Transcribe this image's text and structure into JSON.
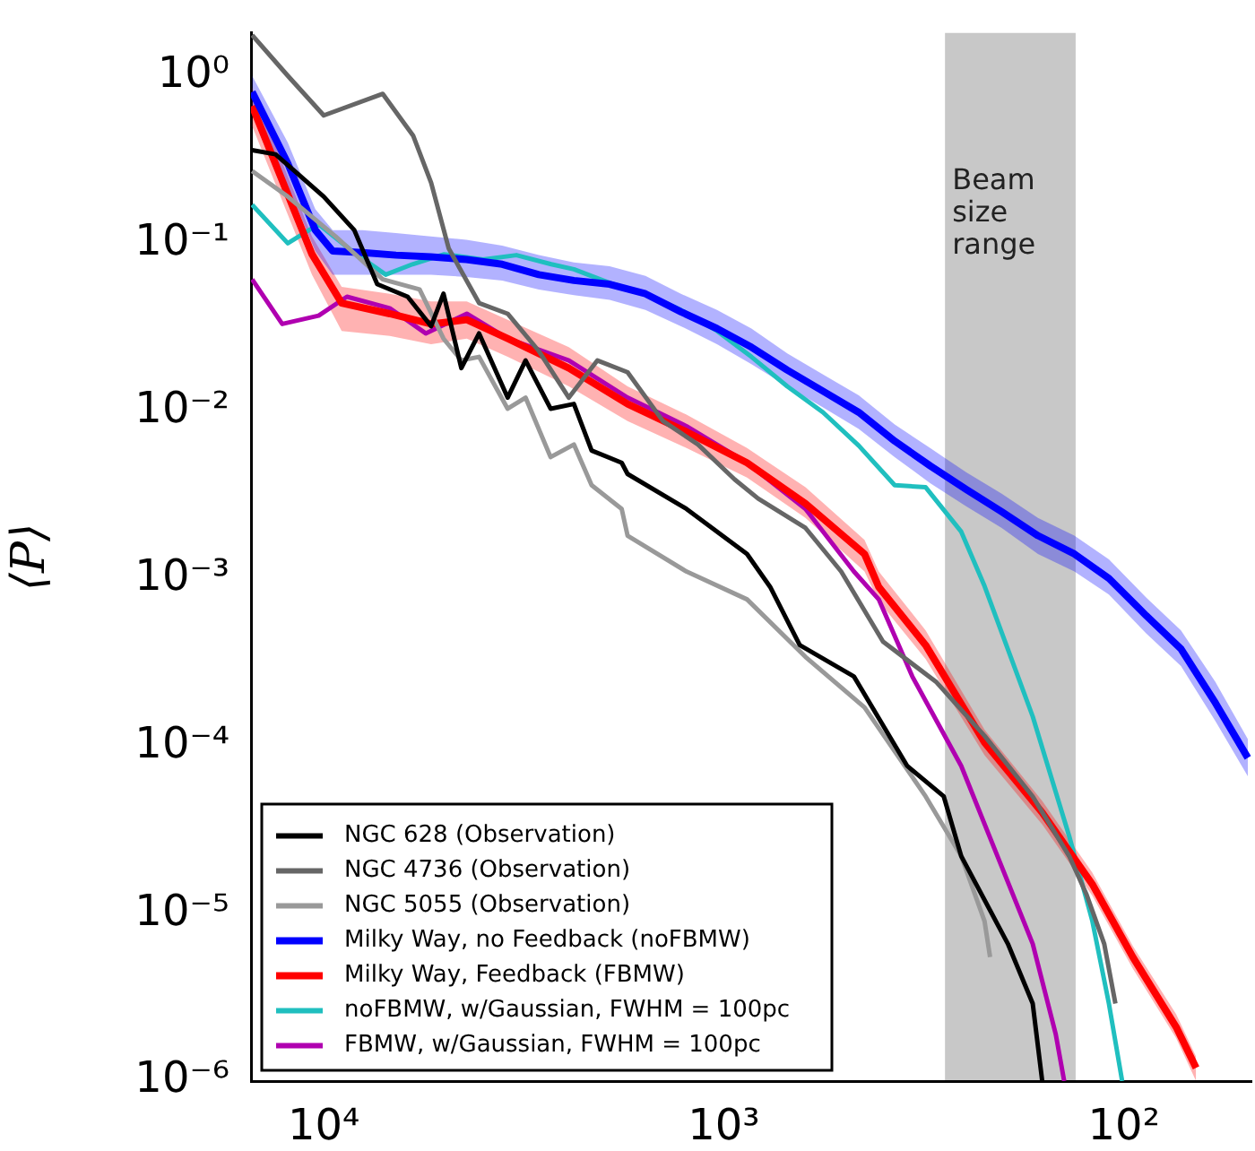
{
  "chart_data": {
    "type": "line",
    "ylabel": "⟨P⟩",
    "log": "xy",
    "xlim": [
      15200,
      48
    ],
    "ylim": [
      1e-06,
      1.8
    ],
    "xticks": [
      {
        "value": 10000,
        "label": "10⁴"
      },
      {
        "value": 1000,
        "label": "10³"
      },
      {
        "value": 100,
        "label": "10²"
      }
    ],
    "yticks": [
      {
        "value": 1e-06,
        "label": "10⁻⁶"
      },
      {
        "value": 1e-05,
        "label": "10⁻⁵"
      },
      {
        "value": 0.0001,
        "label": "10⁻⁴"
      },
      {
        "value": 0.001,
        "label": "10⁻³"
      },
      {
        "value": 0.01,
        "label": "10⁻²"
      },
      {
        "value": 0.1,
        "label": "10⁻¹"
      },
      {
        "value": 1,
        "label": "10⁰"
      }
    ],
    "grid": false,
    "legend": "bottom left",
    "bands": [
      {
        "axis": "x",
        "from": 280,
        "to": 132,
        "label": "Beam size range",
        "color": "#c8c8c8"
      }
    ],
    "series": [
      {
        "name": "NGC 628 (Observation)",
        "color": "#000000",
        "x": [
          15100,
          13200,
          10000,
          8390,
          7350,
          6170,
          5390,
          5020,
          4530,
          4090,
          3470,
          3130,
          2710,
          2370,
          2140,
          1800,
          1740,
          1240,
          875,
          766,
          646,
          473,
          348,
          282,
          255,
          195,
          169,
          160
        ],
        "values": [
          0.36,
          0.34,
          0.19,
          0.12,
          0.057,
          0.048,
          0.032,
          0.05,
          0.018,
          0.029,
          0.012,
          0.02,
          0.0103,
          0.011,
          0.0058,
          0.0049,
          0.0042,
          0.0026,
          0.0014,
          0.00089,
          0.0004,
          0.00026,
          7.6e-05,
          5e-05,
          2.2e-05,
          6.6e-06,
          2.9e-06,
          1e-06
        ]
      },
      {
        "name": "NGC 4736 (Observation)",
        "color": "#666666",
        "x": [
          15100,
          12300,
          10000,
          7120,
          5980,
          5390,
          4870,
          4090,
          3470,
          2910,
          2440,
          2070,
          1740,
          1420,
          1160,
          940,
          821,
          625,
          509,
          400,
          294,
          223,
          169,
          137,
          124,
          112,
          105
        ],
        "values": [
          1.75,
          1.0,
          0.58,
          0.78,
          0.44,
          0.23,
          0.093,
          0.044,
          0.038,
          0.023,
          0.012,
          0.02,
          0.017,
          0.0087,
          0.0063,
          0.0039,
          0.003,
          0.002,
          0.0011,
          0.00042,
          0.00024,
          0.000115,
          5e-05,
          2.2e-05,
          1.3e-05,
          6.6e-06,
          2.9e-06
        ]
      },
      {
        "name": "NGC 5055 (Observation)",
        "color": "#999999",
        "x": [
          15100,
          12300,
          9350,
          7120,
          5760,
          5020,
          4530,
          4090,
          3470,
          3130,
          2710,
          2370,
          2140,
          1800,
          1740,
          1240,
          875,
          625,
          445,
          313,
          255,
          223,
          216
        ],
        "values": [
          0.27,
          0.19,
          0.11,
          0.061,
          0.053,
          0.027,
          0.02,
          0.021,
          0.0103,
          0.012,
          0.0053,
          0.0063,
          0.0036,
          0.0026,
          0.0018,
          0.0011,
          0.00075,
          0.00034,
          0.00017,
          5e-05,
          2.2e-05,
          9e-06,
          5.5e-06
        ]
      },
      {
        "name": "Milky Way, no Feedback (noFBMW)",
        "color": "#0000ff",
        "x": [
          15100,
          12300,
          10500,
          9500,
          8000,
          6600,
          5400,
          4400,
          3580,
          2900,
          2370,
          1930,
          1570,
          1280,
          1040,
          853,
          694,
          565,
          460,
          374,
          305,
          248,
          202,
          164,
          133,
          109,
          88,
          72,
          59,
          49
        ],
        "values": [
          0.8,
          0.3,
          0.12,
          0.09,
          0.088,
          0.085,
          0.083,
          0.08,
          0.075,
          0.065,
          0.06,
          0.057,
          0.05,
          0.039,
          0.031,
          0.024,
          0.0175,
          0.0131,
          0.0098,
          0.0066,
          0.0047,
          0.0034,
          0.0025,
          0.0018,
          0.0014,
          0.001,
          0.0006,
          0.00038,
          0.00018,
          8.5e-05
        ],
        "lower": [
          0.6,
          0.22,
          0.09,
          0.065,
          0.065,
          0.065,
          0.065,
          0.063,
          0.06,
          0.053,
          0.049,
          0.046,
          0.04,
          0.032,
          0.025,
          0.019,
          0.014,
          0.0105,
          0.0078,
          0.0053,
          0.0037,
          0.0027,
          0.002,
          0.0014,
          0.0011,
          0.0008,
          0.00047,
          0.0003,
          0.00014,
          6.6e-05
        ],
        "upper": [
          1.0,
          0.4,
          0.16,
          0.12,
          0.12,
          0.115,
          0.11,
          0.105,
          0.097,
          0.085,
          0.077,
          0.073,
          0.064,
          0.05,
          0.04,
          0.031,
          0.022,
          0.0165,
          0.0124,
          0.0083,
          0.006,
          0.0043,
          0.0032,
          0.0023,
          0.0018,
          0.0013,
          0.00077,
          0.00049,
          0.00024,
          0.00011
        ]
      },
      {
        "name": "Milky Way, Feedback (FBMW)",
        "color": "#ff0000",
        "x": [
          15100,
          10700,
          9020,
          6840,
          5390,
          4390,
          3470,
          2440,
          1740,
          1240,
          875,
          625,
          445,
          410,
          313,
          223,
          160,
          120,
          95,
          74,
          66
        ],
        "values": [
          0.66,
          0.086,
          0.044,
          0.038,
          0.033,
          0.035,
          0.027,
          0.018,
          0.011,
          0.0075,
          0.0049,
          0.0028,
          0.0014,
          0.00089,
          0.0004,
          0.000105,
          4e-05,
          1.5e-05,
          5.5e-06,
          2.1e-06,
          1.2e-06
        ],
        "lower": [
          0.5,
          0.065,
          0.03,
          0.028,
          0.025,
          0.027,
          0.021,
          0.014,
          0.0087,
          0.006,
          0.004,
          0.0023,
          0.0011,
          0.00073,
          0.00033,
          8.8e-05,
          3.4e-05,
          1.28e-05,
          4.7e-06,
          1.8e-06,
          1e-06
        ],
        "upper": [
          0.85,
          0.11,
          0.055,
          0.05,
          0.045,
          0.045,
          0.035,
          0.024,
          0.014,
          0.0095,
          0.006,
          0.0035,
          0.0017,
          0.0011,
          0.00049,
          0.000125,
          4.7e-05,
          1.76e-05,
          6.4e-06,
          2.5e-06,
          1.4e-06
        ]
      },
      {
        "name": "noFBMW, w/Gaussian, FWHM = 100pc",
        "color": "#20bfbf",
        "x": [
          15100,
          12300,
          10300,
          8500,
          7000,
          6000,
          5000,
          4000,
          3300,
          2700,
          2370,
          1930,
          1570,
          1280,
          1040,
          853,
          694,
          565,
          460,
          374,
          313,
          255,
          223,
          169,
          137,
          120,
          109,
          101
        ],
        "values": [
          0.17,
          0.1,
          0.13,
          0.09,
          0.065,
          0.075,
          0.086,
          0.08,
          0.085,
          0.075,
          0.07,
          0.058,
          0.05,
          0.04,
          0.03,
          0.021,
          0.014,
          0.0098,
          0.0062,
          0.0036,
          0.0035,
          0.0019,
          0.0009,
          0.00015,
          2.9e-05,
          9.1e-06,
          2.9e-06,
          1e-06
        ]
      },
      {
        "name": "FBMW, w/Gaussian, FWHM = 100pc",
        "color": "#b000b0",
        "x": [
          15100,
          12700,
          10300,
          8750,
          6840,
          5560,
          4390,
          3470,
          2440,
          1740,
          1240,
          875,
          625,
          473,
          410,
          338,
          255,
          207,
          169,
          148,
          141
        ],
        "values": [
          0.061,
          0.033,
          0.037,
          0.048,
          0.041,
          0.029,
          0.038,
          0.027,
          0.02,
          0.012,
          0.0081,
          0.0049,
          0.0026,
          0.0011,
          0.00075,
          0.00026,
          7.6e-05,
          2.2e-05,
          6.6e-06,
          1.9e-06,
          1e-06
        ]
      }
    ]
  }
}
